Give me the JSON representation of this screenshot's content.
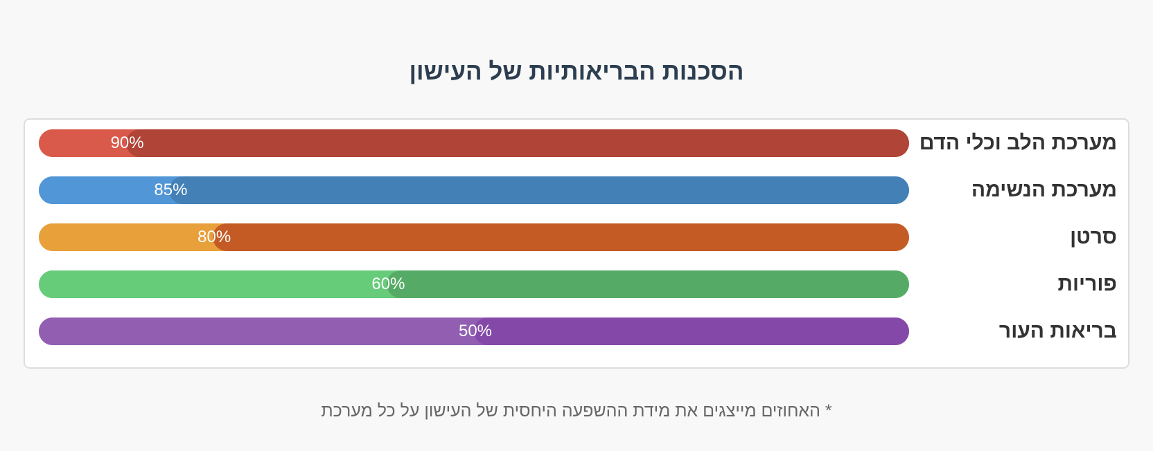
{
  "title": "הסכנות הבריאותיות של העישון",
  "footnote": "* האחוזים מייצגים את מידת ההשפעה היחסית של העישון על כל מערכת",
  "chart_data": {
    "type": "bar",
    "orientation": "horizontal",
    "title": "הסכנות הבריאותיות של העישון",
    "categories": [
      "מערכת הלב וכלי הדם",
      "מערכת הנשימה",
      "סרטן",
      "פוריות",
      "בריאות העור"
    ],
    "values": [
      90,
      85,
      80,
      60,
      50
    ],
    "value_labels": [
      "90%",
      "85%",
      "80%",
      "60%",
      "50%"
    ],
    "unit": "%",
    "xlim": [
      0,
      100
    ],
    "colors": [
      {
        "light": "#d9594a",
        "dark": "#b04436"
      },
      {
        "light": "#5196d6",
        "dark": "#4380b6"
      },
      {
        "light": "#e8a03a",
        "dark": "#c55b24"
      },
      {
        "light": "#66cc79",
        "dark": "#55ab66"
      },
      {
        "light": "#915eb1",
        "dark": "#8348a8"
      }
    ],
    "grid": false,
    "legend": "none"
  }
}
